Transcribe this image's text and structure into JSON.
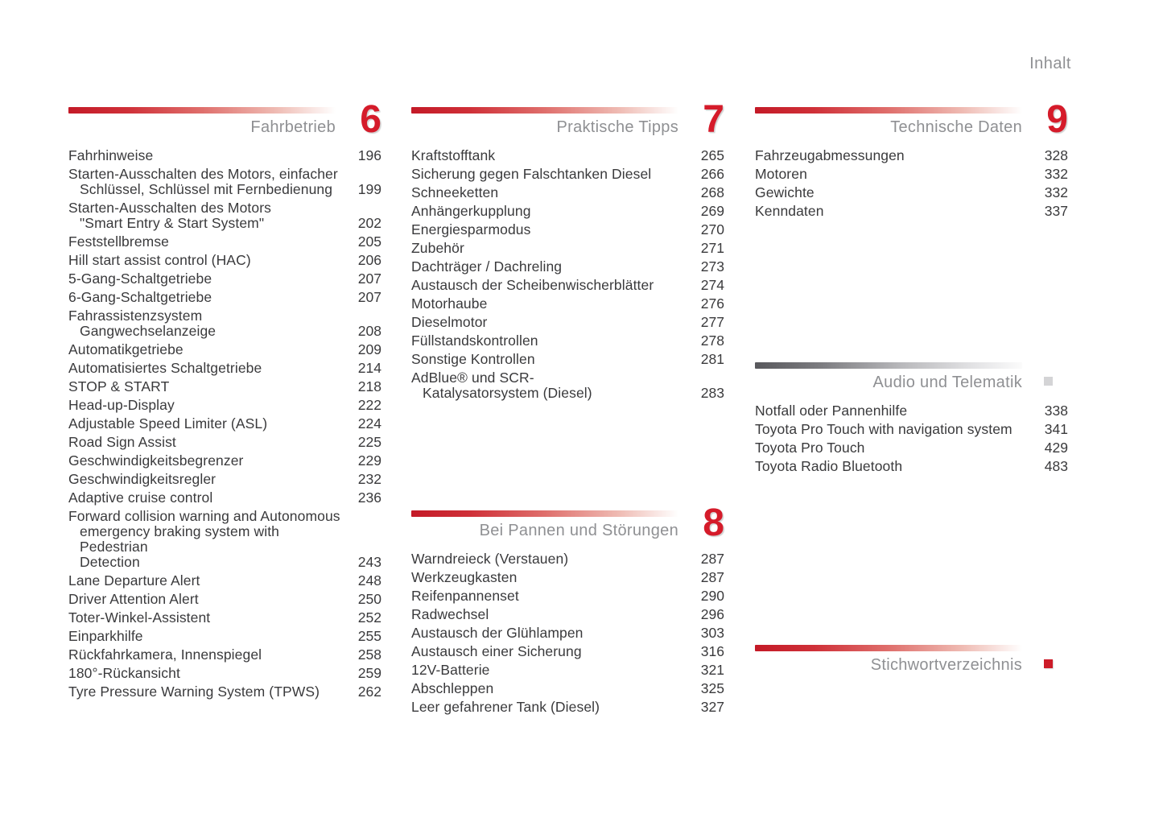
{
  "page": {
    "corner_label": "Inhalt"
  },
  "colors": {
    "accent_red": "#d51b2a",
    "header_gray": "#8f9093",
    "text_gray": "#3a3a3c"
  },
  "columns": [
    {
      "sections": [
        {
          "title": "Fahrbetrieb",
          "number": "6",
          "bar": "red",
          "entries": [
            {
              "lines": [
                "Fahrhinweise"
              ],
              "page": "196"
            },
            {
              "lines": [
                "Starten-Ausschalten des Motors, einfacher",
                "Schlüssel, Schlüssel mit Fernbedienung"
              ],
              "page": "199"
            },
            {
              "lines": [
                "Starten-Ausschalten des Motors",
                "\"Smart Entry & Start System\""
              ],
              "page": "202"
            },
            {
              "lines": [
                "Feststellbremse"
              ],
              "page": "205"
            },
            {
              "lines": [
                "Hill start assist control (HAC)"
              ],
              "page": "206"
            },
            {
              "lines": [
                "5-Gang-Schaltgetriebe"
              ],
              "page": "207"
            },
            {
              "lines": [
                "6-Gang-Schaltgetriebe"
              ],
              "page": "207"
            },
            {
              "lines": [
                "Fahrassistenzsystem",
                "Gangwechselanzeige"
              ],
              "page": "208"
            },
            {
              "lines": [
                "Automatikgetriebe"
              ],
              "page": "209"
            },
            {
              "lines": [
                "Automatisiertes Schaltgetriebe"
              ],
              "page": "214"
            },
            {
              "lines": [
                "STOP & START"
              ],
              "page": "218"
            },
            {
              "lines": [
                "Head-up-Display"
              ],
              "page": "222"
            },
            {
              "lines": [
                "Adjustable Speed Limiter (ASL)"
              ],
              "page": "224"
            },
            {
              "lines": [
                "Road Sign Assist"
              ],
              "page": "225"
            },
            {
              "lines": [
                "Geschwindigkeitsbegrenzer"
              ],
              "page": "229"
            },
            {
              "lines": [
                "Geschwindigkeitsregler"
              ],
              "page": "232"
            },
            {
              "lines": [
                "Adaptive cruise control"
              ],
              "page": "236"
            },
            {
              "lines": [
                "Forward collision warning and Autonomous",
                "emergency braking system with Pedestrian",
                "Detection"
              ],
              "page": "243"
            },
            {
              "lines": [
                "Lane Departure Alert"
              ],
              "page": "248"
            },
            {
              "lines": [
                "Driver Attention Alert"
              ],
              "page": "250"
            },
            {
              "lines": [
                "Toter-Winkel-Assistent"
              ],
              "page": "252"
            },
            {
              "lines": [
                "Einparkhilfe"
              ],
              "page": "255"
            },
            {
              "lines": [
                "Rückfahrkamera, Innenspiegel"
              ],
              "page": "258"
            },
            {
              "lines": [
                "180°-Rückansicht"
              ],
              "page": "259"
            },
            {
              "lines": [
                "Tyre Pressure Warning System (TPWS)"
              ],
              "page": "262"
            }
          ]
        }
      ]
    },
    {
      "sections": [
        {
          "title": "Praktische Tipps",
          "number": "7",
          "bar": "red",
          "entries": [
            {
              "lines": [
                "Kraftstofftank"
              ],
              "page": "265"
            },
            {
              "lines": [
                "Sicherung gegen Falschtanken Diesel"
              ],
              "page": "266"
            },
            {
              "lines": [
                "Schneeketten"
              ],
              "page": "268"
            },
            {
              "lines": [
                "Anhängerkupplung"
              ],
              "page": "269"
            },
            {
              "lines": [
                "Energiesparmodus"
              ],
              "page": "270"
            },
            {
              "lines": [
                "Zubehör"
              ],
              "page": "271"
            },
            {
              "lines": [
                "Dachträger / Dachreling"
              ],
              "page": "273"
            },
            {
              "lines": [
                "Austausch der Scheibenwischerblätter"
              ],
              "page": "274"
            },
            {
              "lines": [
                "Motorhaube"
              ],
              "page": "276"
            },
            {
              "lines": [
                "Dieselmotor"
              ],
              "page": "277"
            },
            {
              "lines": [
                "Füllstandskontrollen"
              ],
              "page": "278"
            },
            {
              "lines": [
                "Sonstige Kontrollen"
              ],
              "page": "281"
            },
            {
              "lines": [
                "AdBlue® und SCR-",
                "Katalysatorsystem (Diesel)"
              ],
              "page": "283"
            }
          ]
        },
        {
          "title": "Bei Pannen und Störungen",
          "number": "8",
          "bar": "red",
          "entries": [
            {
              "lines": [
                "Warndreieck (Verstauen)"
              ],
              "page": "287"
            },
            {
              "lines": [
                "Werkzeugkasten"
              ],
              "page": "287"
            },
            {
              "lines": [
                "Reifenpannenset"
              ],
              "page": "290"
            },
            {
              "lines": [
                "Radwechsel"
              ],
              "page": "296"
            },
            {
              "lines": [
                "Austausch der Glühlampen"
              ],
              "page": "303"
            },
            {
              "lines": [
                "Austausch einer Sicherung"
              ],
              "page": "316"
            },
            {
              "lines": [
                "12V-Batterie"
              ],
              "page": "321"
            },
            {
              "lines": [
                "Abschleppen"
              ],
              "page": "325"
            },
            {
              "lines": [
                "Leer gefahrener Tank (Diesel)"
              ],
              "page": "327"
            }
          ]
        }
      ]
    },
    {
      "sections": [
        {
          "title": "Technische Daten",
          "number": "9",
          "bar": "red",
          "entries": [
            {
              "lines": [
                "Fahrzeugabmessungen"
              ],
              "page": "328"
            },
            {
              "lines": [
                "Motoren"
              ],
              "page": "332"
            },
            {
              "lines": [
                "Gewichte"
              ],
              "page": "332"
            },
            {
              "lines": [
                "Kenndaten"
              ],
              "page": "337"
            }
          ]
        },
        {
          "title": "Audio und Telematik",
          "marker": "gray-square",
          "bar": "gray",
          "entries": [
            {
              "lines": [
                "Notfall oder Pannenhilfe"
              ],
              "page": "338"
            },
            {
              "lines": [
                "Toyota Pro Touch with navigation system"
              ],
              "page": "341"
            },
            {
              "lines": [
                "Toyota Pro Touch"
              ],
              "page": "429"
            },
            {
              "lines": [
                "Toyota Radio Bluetooth"
              ],
              "page": "483"
            }
          ]
        },
        {
          "title": "Stichwortverzeichnis",
          "marker": "red-square",
          "bar": "red",
          "entries": []
        }
      ]
    }
  ]
}
